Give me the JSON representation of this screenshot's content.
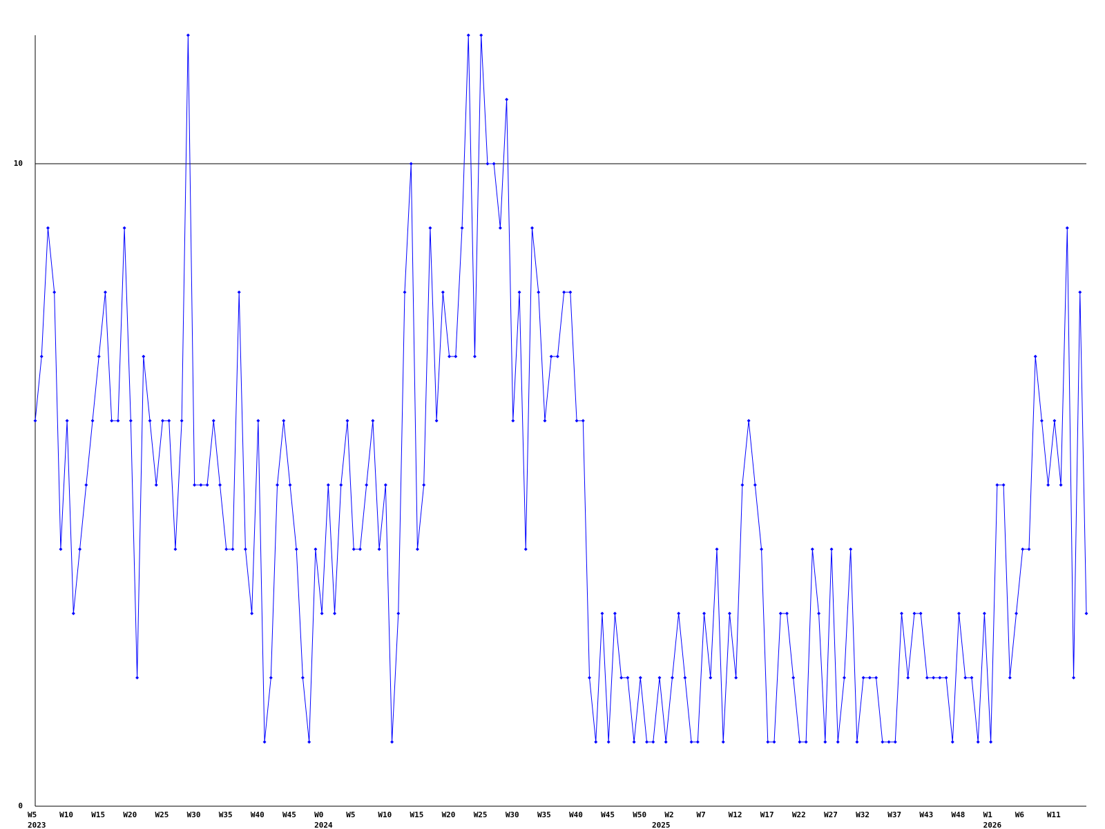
{
  "chart_data": {
    "type": "line",
    "categories": [
      "W5",
      null,
      null,
      null,
      null,
      "W10",
      null,
      null,
      null,
      null,
      "W15",
      null,
      null,
      null,
      null,
      "W20",
      null,
      null,
      null,
      null,
      "W25",
      null,
      null,
      null,
      null,
      "W30",
      null,
      null,
      null,
      null,
      "W35",
      null,
      null,
      null,
      null,
      "W40",
      null,
      null,
      null,
      null,
      "W45",
      null,
      null,
      null,
      null,
      "W0",
      null,
      null,
      null,
      null,
      "W5",
      null,
      null,
      null,
      null,
      "W10",
      null,
      null,
      null,
      null,
      "W15",
      null,
      null,
      null,
      null,
      "W20",
      null,
      null,
      null,
      null,
      "W25",
      null,
      null,
      null,
      null,
      "W30",
      null,
      null,
      null,
      null,
      "W35",
      null,
      null,
      null,
      null,
      "W40",
      null,
      null,
      null,
      null,
      "W45",
      null,
      null,
      null,
      null,
      "W50",
      null,
      null,
      null,
      null,
      "W2",
      null,
      null,
      null,
      null,
      "W7",
      null,
      null,
      null,
      null,
      "W12",
      null,
      null,
      null,
      null,
      "W17",
      null,
      null,
      null,
      null,
      "W22",
      null,
      null,
      null,
      null,
      "W27",
      null,
      null,
      null,
      null,
      "W32",
      null,
      null,
      null,
      null,
      "W37",
      null,
      null,
      null,
      null,
      "W43",
      null,
      null,
      null,
      null,
      "W48",
      null,
      null,
      null,
      null,
      "W1",
      null,
      null,
      null,
      null,
      "W6",
      null,
      null,
      null,
      null,
      "W11",
      null,
      null,
      null,
      null,
      null
    ],
    "x_groups": [
      {
        "label": "2023",
        "index": 0
      },
      {
        "label": "2024",
        "index": 45
      },
      {
        "label": "2025",
        "index": 98
      },
      {
        "label": "2026",
        "index": 150
      }
    ],
    "values": [
      6,
      7,
      9,
      8,
      4,
      6,
      3,
      4,
      5,
      6,
      7,
      8,
      6,
      6,
      9,
      6,
      2,
      7,
      6,
      5,
      6,
      6,
      4,
      6,
      12,
      5,
      5,
      5,
      6,
      5,
      4,
      4,
      8,
      4,
      3,
      6,
      1,
      2,
      5,
      6,
      5,
      4,
      2,
      1,
      4,
      3,
      5,
      3,
      5,
      6,
      4,
      4,
      5,
      6,
      4,
      5,
      1,
      3,
      8,
      10,
      4,
      5,
      9,
      6,
      8,
      7,
      7,
      9,
      12,
      7,
      12,
      10,
      10,
      9,
      11,
      6,
      8,
      4,
      9,
      8,
      6,
      7,
      7,
      8,
      8,
      6,
      6,
      2,
      1,
      3,
      1,
      3,
      2,
      2,
      1,
      2,
      1,
      1,
      2,
      1,
      2,
      3,
      2,
      1,
      1,
      3,
      2,
      4,
      1,
      3,
      2,
      5,
      6,
      5,
      4,
      1,
      1,
      3,
      3,
      2,
      1,
      1,
      4,
      3,
      1,
      4,
      1,
      2,
      4,
      1,
      2,
      2,
      2,
      1,
      1,
      1,
      3,
      2,
      3,
      3,
      2,
      2,
      2,
      2,
      1,
      3,
      2,
      2,
      1,
      3,
      1,
      5,
      5,
      2,
      3,
      4,
      4,
      7,
      6,
      5,
      6,
      5,
      9,
      2,
      8,
      3
    ],
    "color": "#0000ff",
    "ylim": [
      0,
      12
    ],
    "yticks": [
      0,
      10
    ],
    "grid": true
  }
}
